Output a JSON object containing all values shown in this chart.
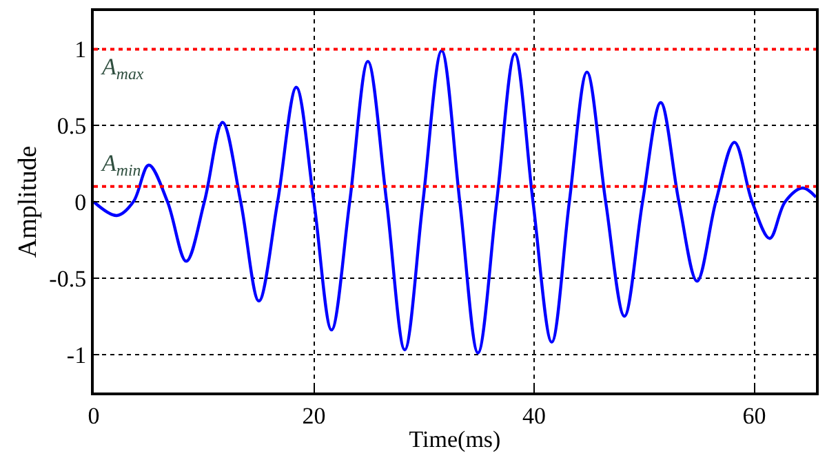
{
  "chart_data": {
    "type": "line",
    "xlabel": "Time(ms)",
    "ylabel": "Amplitude",
    "x": [
      0,
      2.1,
      3.6,
      5.0,
      6.7,
      8.4,
      10.05,
      11.7,
      13.35,
      15.0,
      16.7,
      18.4,
      20.0,
      21.6,
      23.25,
      24.9,
      26.6,
      28.25,
      29.9,
      31.6,
      33.25,
      34.9,
      36.6,
      38.25,
      39.9,
      41.6,
      43.2,
      44.8,
      46.5,
      48.2,
      49.85,
      51.5,
      53.15,
      54.8,
      56.5,
      58.2,
      59.8,
      61.4,
      62.8,
      64.4,
      65.6
    ],
    "series": [
      {
        "color": "#0000ff",
        "values": [
          0,
          -0.09,
          0,
          0.24,
          0,
          -0.39,
          0,
          0.52,
          0,
          -0.65,
          0,
          0.75,
          0,
          -0.84,
          0,
          0.92,
          0,
          -0.97,
          0,
          0.99,
          0,
          -0.99,
          0,
          0.97,
          0,
          -0.92,
          0,
          0.85,
          0,
          -0.75,
          0,
          0.65,
          0,
          -0.52,
          0,
          0.39,
          0,
          -0.24,
          0,
          0.09,
          0.03
        ]
      }
    ],
    "ref_lines": [
      {
        "axis": "y",
        "value": 1,
        "label": "A$_{max}$",
        "color": "#ff0000",
        "line_style": "dotted"
      },
      {
        "axis": "y",
        "value": 0.1,
        "label": "A$_{min}$",
        "color": "#ff0000",
        "line_style": "dotted"
      }
    ],
    "xlim": [
      0,
      65.6
    ],
    "ylim": [
      -1.25,
      1.25
    ],
    "xticks": [
      0,
      20,
      40,
      60
    ],
    "yticks": [
      -1,
      -0.5,
      0,
      0.5,
      1
    ],
    "grid": true,
    "line_style": "solid",
    "marker": "none"
  }
}
